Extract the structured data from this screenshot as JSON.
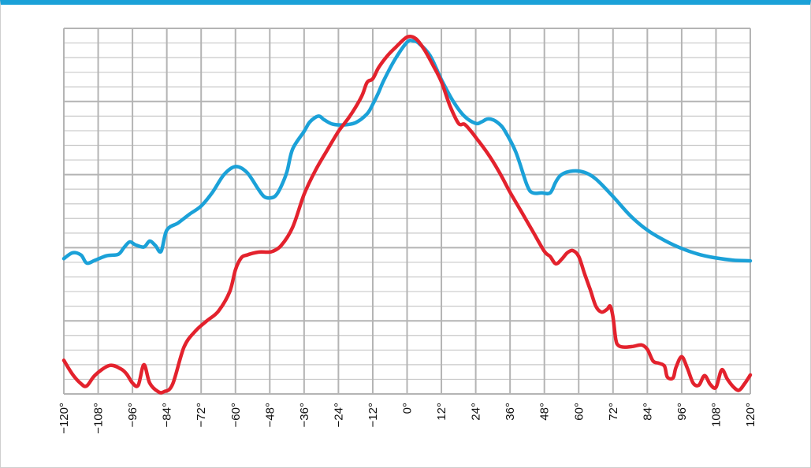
{
  "chart_data": {
    "type": "line",
    "title": "",
    "xlabel": "",
    "ylabel": "",
    "xlim": [
      -120,
      120
    ],
    "ylim": [
      0,
      50
    ],
    "x_ticks": [
      -120,
      -108,
      -96,
      -84,
      -72,
      -60,
      -48,
      -36,
      -24,
      -12,
      0,
      12,
      24,
      36,
      48,
      60,
      72,
      84,
      96,
      108,
      120
    ],
    "x_tick_labels": [
      "−120°",
      "−108°",
      "−96°",
      "−84°",
      "−72°",
      "−60°",
      "−48°",
      "−36°",
      "−24°",
      "−12°",
      "0°",
      "12°",
      "24°",
      "36°",
      "48°",
      "60°",
      "72°",
      "84°",
      "96°",
      "108°",
      "120°"
    ],
    "grid": true,
    "series": [
      {
        "color": "#1ba1d8",
        "x": [
          -120,
          -117,
          -114,
          -112,
          -109,
          -105,
          -101,
          -99,
          -97,
          -95,
          -92,
          -90,
          -88,
          -86,
          -84,
          -80,
          -76,
          -72,
          -68,
          -64,
          -60,
          -56,
          -52,
          -50,
          -48,
          -46,
          -44,
          -42,
          -40,
          -36,
          -34,
          -31,
          -29,
          -26,
          -22,
          -18,
          -14,
          -12,
          -10,
          -8,
          -4,
          0,
          2,
          4,
          8,
          12,
          16,
          20,
          24,
          26,
          28,
          30,
          32,
          34,
          38,
          42,
          44,
          47,
          50,
          52,
          54,
          58,
          62,
          66,
          72,
          78,
          84,
          90,
          96,
          102,
          108,
          114,
          120
        ],
        "y": [
          18.5,
          19.3,
          19,
          17.9,
          18.3,
          18.9,
          19.1,
          20.0,
          20.8,
          20.4,
          20.1,
          20.9,
          20.3,
          19.5,
          22.4,
          23.4,
          24.6,
          25.7,
          27.6,
          30.0,
          31.1,
          30.3,
          28.0,
          27.0,
          26.8,
          27.1,
          28.4,
          30.4,
          33.5,
          35.9,
          37.2,
          38.0,
          37.5,
          36.9,
          36.8,
          37.1,
          38.3,
          39.6,
          41.2,
          43.0,
          45.9,
          48.1,
          48.3,
          48.0,
          46.3,
          43.0,
          40.1,
          38.0,
          37.0,
          37.2,
          37.6,
          37.5,
          37.0,
          36.1,
          33.1,
          28.5,
          27.5,
          27.5,
          27.5,
          29.0,
          30.0,
          30.5,
          30.3,
          29.4,
          27.0,
          24.4,
          22.4,
          21.0,
          19.9,
          19.1,
          18.6,
          18.3,
          18.2
        ]
      },
      {
        "color": "#e3222d",
        "x": [
          -120,
          -117,
          -114,
          -112,
          -109,
          -104,
          -100,
          -98,
          -96,
          -94,
          -92,
          -90,
          -87,
          -85,
          -82,
          -78,
          -74,
          -70,
          -66,
          -62,
          -60,
          -58,
          -56,
          -52,
          -49,
          -47,
          -44,
          -40,
          -36,
          -32,
          -28,
          -24,
          -20,
          -16,
          -14,
          -12,
          -10,
          -7,
          -4,
          0,
          3,
          6,
          9,
          12,
          15,
          18,
          20,
          22,
          24,
          28,
          32,
          36,
          40,
          44,
          48,
          50,
          52,
          54,
          56,
          58,
          60,
          62,
          64,
          66,
          68,
          70,
          71,
          72,
          73,
          74,
          76,
          79,
          82,
          84,
          86,
          88,
          90,
          91,
          93,
          94,
          96,
          98,
          100,
          102,
          104,
          106,
          108,
          110,
          112,
          114,
          116,
          118,
          120
        ],
        "y": [
          4.6,
          2.7,
          1.4,
          1.1,
          2.6,
          3.9,
          3.4,
          2.7,
          1.5,
          1.2,
          4.0,
          1.5,
          0.3,
          0.3,
          1.3,
          6.4,
          8.6,
          10.0,
          11.3,
          14.0,
          17.0,
          18.6,
          19.0,
          19.4,
          19.4,
          19.5,
          20.3,
          22.8,
          27.3,
          30.6,
          33.3,
          35.9,
          38.0,
          40.6,
          42.6,
          43.1,
          44.6,
          46.2,
          47.4,
          48.8,
          48.6,
          47.1,
          45.0,
          42.7,
          39.4,
          37.0,
          36.9,
          36.1,
          35.1,
          33.0,
          30.5,
          27.6,
          24.9,
          22.2,
          19.5,
          18.8,
          17.8,
          18.4,
          19.3,
          19.6,
          18.8,
          16.5,
          14.3,
          12.0,
          11.2,
          11.6,
          12.0,
          10.5,
          7.4,
          6.6,
          6.4,
          6.5,
          6.7,
          6.1,
          4.5,
          4.2,
          3.8,
          2.3,
          2.2,
          3.6,
          5.1,
          3.5,
          1.5,
          1.2,
          2.5,
          1.3,
          0.9,
          3.3,
          2.0,
          1.0,
          0.5,
          1.4,
          2.6
        ]
      }
    ]
  }
}
